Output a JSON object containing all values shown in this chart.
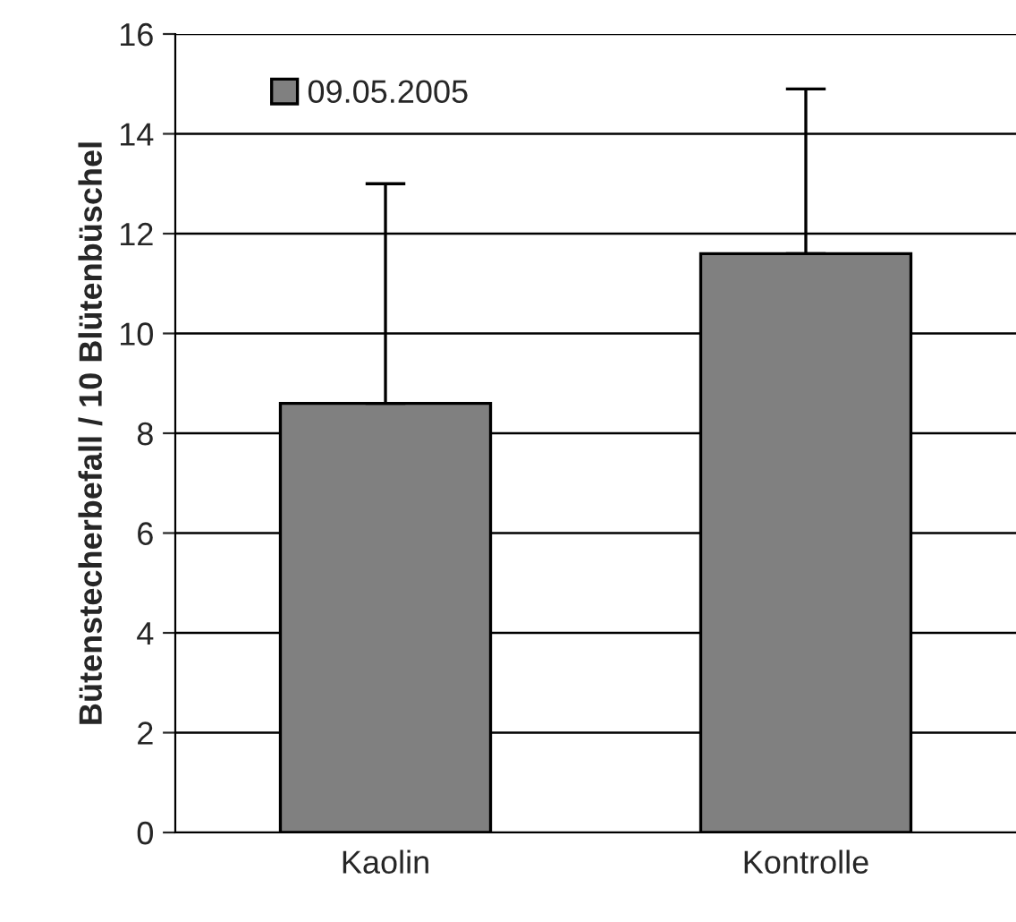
{
  "chart_data": {
    "type": "bar",
    "ylabel": "Bütenstecherbefall / 10 Blütenbüschel",
    "categories": [
      "Kaolin",
      "Kontrolle"
    ],
    "series": [
      {
        "name": "09.05.2005",
        "color": "#808080",
        "values": [
          8.6,
          11.6
        ],
        "errors": [
          [
            8.6,
            13.0
          ],
          [
            11.6,
            14.9
          ]
        ]
      }
    ],
    "ylim": [
      0,
      16
    ],
    "yticks": [
      0,
      2,
      4,
      6,
      8,
      10,
      12,
      14,
      16
    ],
    "grid": "y",
    "legend": "top left"
  }
}
